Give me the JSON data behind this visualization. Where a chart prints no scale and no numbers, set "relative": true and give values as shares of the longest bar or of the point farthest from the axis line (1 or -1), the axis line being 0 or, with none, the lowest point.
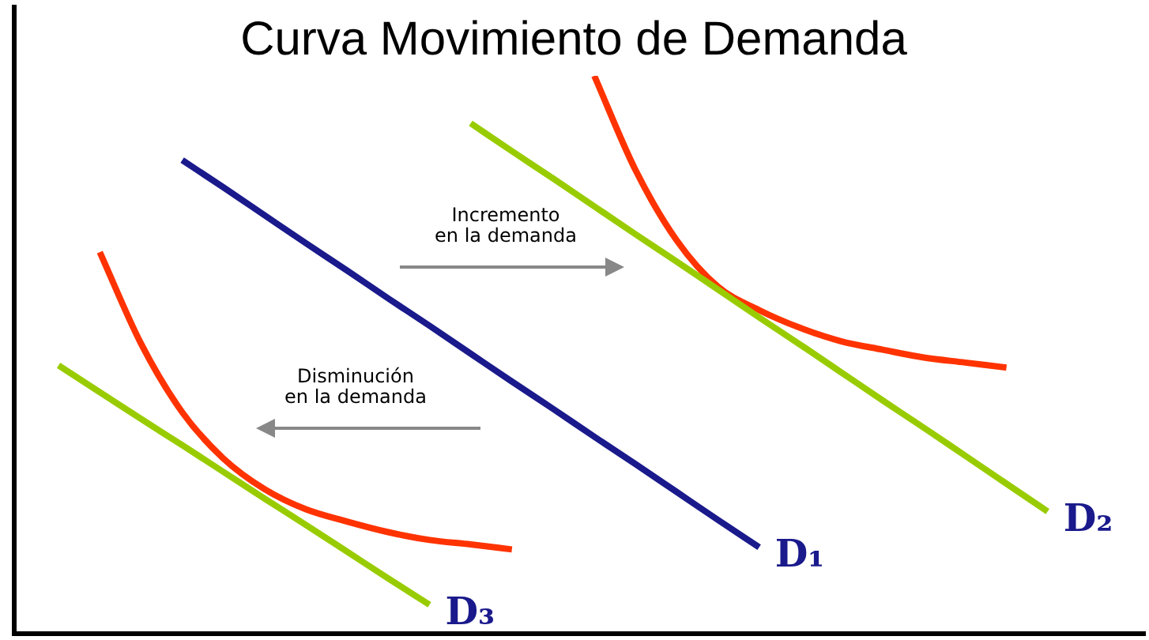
{
  "chart_data": {
    "type": "line",
    "title": "Curva Movimiento de Demanda",
    "relative": true,
    "legend": false,
    "marker": "none",
    "annotations": [
      "Incremento\nen la demanda",
      "Disminución\nen la demanda"
    ],
    "categories": [
      null,
      null,
      null,
      null,
      null,
      null,
      null,
      null,
      null,
      null,
      null,
      null,
      null,
      null,
      null,
      null,
      null,
      null,
      null,
      null,
      null,
      null,
      null,
      null,
      null,
      null,
      null,
      null
    ],
    "series": [
      {
        "name": "D₁",
        "color": "#1a1a8c",
        "values": [
          null,
          null,
          null,
          null,
          0.849,
          0.8,
          0.75,
          0.7,
          0.651,
          0.601,
          0.552,
          0.502,
          0.452,
          0.403,
          0.353,
          0.304,
          0.254,
          0.204,
          0.155,
          null,
          null,
          null,
          null,
          null,
          null,
          null,
          null,
          null
        ]
      },
      {
        "name": "D₂",
        "color": "#99cc00",
        "values": [
          null,
          null,
          null,
          null,
          null,
          null,
          null,
          null,
          null,
          null,
          null,
          0.915,
          0.865,
          0.816,
          0.766,
          0.716,
          0.667,
          0.617,
          0.567,
          0.518,
          0.468,
          0.418,
          0.369,
          0.319,
          0.269,
          0.219,
          null,
          null
        ]
      },
      {
        "name": "D₃",
        "color": "#99cc00",
        "values": [
          null,
          0.481,
          0.433,
          0.385,
          0.338,
          0.29,
          0.242,
          0.195,
          0.147,
          0.099,
          0.052,
          null,
          null,
          null,
          null,
          null,
          null,
          null,
          null,
          null,
          null,
          null,
          null,
          null,
          null,
          null,
          null,
          null
        ]
      },
      {
        "color": "#ff3300",
        "values": [
          null,
          null,
          null,
          null,
          null,
          null,
          null,
          null,
          null,
          null,
          null,
          null,
          null,
          null,
          1,
          0.831,
          0.705,
          0.622,
          0.58,
          0.548,
          0.524,
          0.509,
          0.495,
          0.486,
          0.477,
          null,
          null,
          null
        ]
      },
      {
        "color": "#ff3300",
        "values": [
          null,
          null,
          0.684,
          0.52,
          0.397,
          0.314,
          0.259,
          0.223,
          0.201,
          0.182,
          0.168,
          0.16,
          0.151,
          null,
          null,
          null,
          null,
          null,
          null,
          null,
          null,
          null,
          null,
          null,
          null,
          null,
          null,
          null
        ]
      }
    ]
  }
}
